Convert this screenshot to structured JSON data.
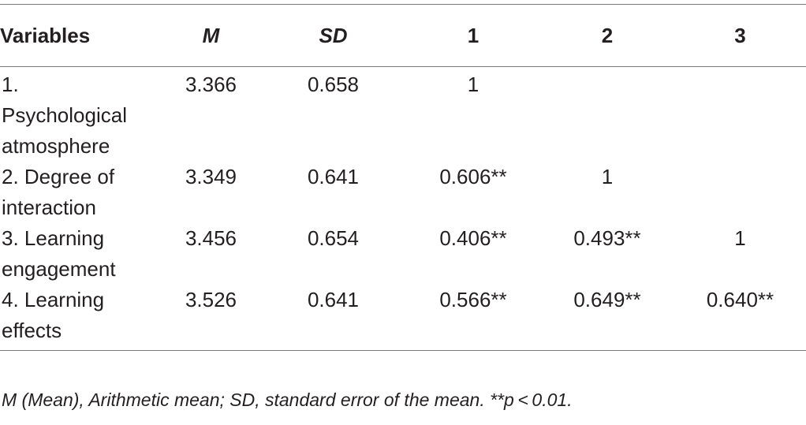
{
  "table": {
    "headers": [
      "Variables",
      "M",
      "SD",
      "1",
      "2",
      "3"
    ],
    "rows": [
      [
        "1. Psychological atmosphere",
        "3.366",
        "0.658",
        "1",
        "",
        ""
      ],
      [
        "2. Degree of interaction",
        "3.349",
        "0.641",
        "0.606**",
        "1",
        ""
      ],
      [
        "3. Learning engagement",
        "3.456",
        "0.654",
        "0.406**",
        "0.493**",
        "1"
      ],
      [
        "4. Learning effects",
        "3.526",
        "0.641",
        "0.566**",
        "0.649**",
        "0.640**"
      ]
    ]
  },
  "note": "M (Mean), Arithmetic mean; SD, standard error of the mean. **p < 0.01."
}
